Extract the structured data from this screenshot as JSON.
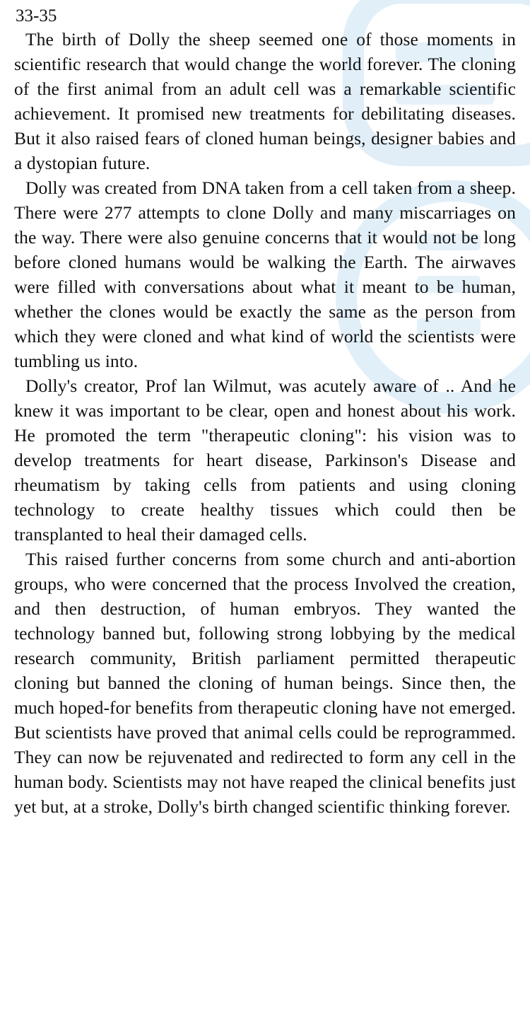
{
  "document": {
    "reference": "33-35",
    "paragraphs": [
      "The birth of Dolly the sheep seemed one of those moments in scientific research that would change the world forever. The cloning of the first animal from an adult cell was a remarkable scientific achievement. It promised new treatments for debilitating diseases. But it also raised fears of cloned human beings, designer babies and a dystopian future.",
      "Dolly was created from DNA taken from a cell taken from a sheep. There were 277 attempts to clone Dolly and many miscarriages on the way. There were also genuine concerns that it would not be long before cloned humans would be walking the Earth. The airwaves were filled with conversations about what it meant to be human, whether the clones would be exactly the same as the person from which they were cloned and what kind of world the scientists were tumbling us into.",
      "Dolly's creator, Prof lan Wilmut, was acutely aware of .. And he knew it was important to be clear, open and honest about his work. He promoted the term \"therapeutic cloning\": his vision was to develop treatments for heart disease, Parkinson's Disease and rheumatism by taking cells from patients and using cloning technology to create healthy tissues which could then be transplanted to heal their damaged cells.",
      "This raised further concerns from some church and anti-abortion groups, who were concerned that the process Involved the creation, and then destruction, of human embryos. They wanted the technology banned but, following strong lobbying by the medical research community, British parliament permitted therapeutic cloning but banned the cloning of human beings. Since then, the much hoped-for benefits from therapeutic cloning have not emerged. But scientists have proved that animal cells could be reprogrammed. They can now be rejuvenated and redirected to form any cell in the human body. Scientists may not have reaped the clinical benefits just yet but, at a stroke, Dolly's birth changed scientific thinking forever."
    ]
  }
}
